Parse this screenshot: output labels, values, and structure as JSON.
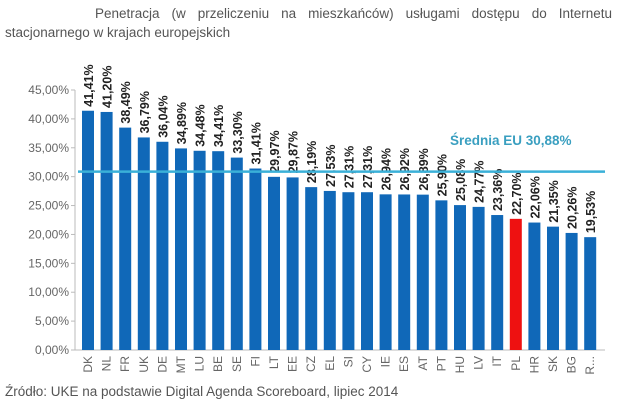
{
  "chart_data": {
    "type": "bar",
    "title_line1": "Penetracja (w przeliczeniu na mieszkańców) usługami dostępu do Internetu",
    "title_line2": "stacjonarnego w krajach europejskich",
    "source": "Źródło: UKE na podstawie Digital Agenda Scoreboard, lipiec 2014",
    "categories": [
      "DK",
      "NL",
      "FR",
      "UK",
      "DE",
      "MT",
      "LU",
      "BE",
      "SE",
      "FI",
      "LT",
      "EE",
      "CZ",
      "EL",
      "SI",
      "CY",
      "IE",
      "ES",
      "AT",
      "PT",
      "HU",
      "LV",
      "IT",
      "PL",
      "HR",
      "SK",
      "BG",
      "R..."
    ],
    "values": [
      41.41,
      41.2,
      38.49,
      36.79,
      36.04,
      34.89,
      34.48,
      34.41,
      33.3,
      31.41,
      29.97,
      29.87,
      28.19,
      27.53,
      27.31,
      27.31,
      26.94,
      26.92,
      26.89,
      25.9,
      25.08,
      24.77,
      23.36,
      22.7,
      22.06,
      21.35,
      20.26,
      19.53
    ],
    "data_labels": [
      "41,41%",
      "41,20%",
      "38,49%",
      "36,79%",
      "36,04%",
      "34,89%",
      "34,48%",
      "34,41%",
      "33,30%",
      "31,41%",
      "29,97%",
      "29,87%",
      "28,19%",
      "27,53%",
      "27,31%",
      "27,31%",
      "26,94%",
      "26,92%",
      "26,89%",
      "25,90%",
      "25,08%",
      "24,77%",
      "23,36%",
      "22,70%",
      "22,06%",
      "21,35%",
      "20,26%",
      "19,53%"
    ],
    "highlight": "PL",
    "ylim": [
      0,
      45
    ],
    "yticks": [
      "0,00%",
      "5,00%",
      "10,00%",
      "15,00%",
      "20,00%",
      "25,00%",
      "30,00%",
      "35,00%",
      "40,00%",
      "45,00%"
    ],
    "average": {
      "label": "Średnia EU 30,88%",
      "value": 30.88
    },
    "grid": false,
    "colors": {
      "bar": "#1068b8",
      "highlight": "#ee1111",
      "average": "#3ab0d8",
      "average_label": "#3a9fc0"
    }
  }
}
